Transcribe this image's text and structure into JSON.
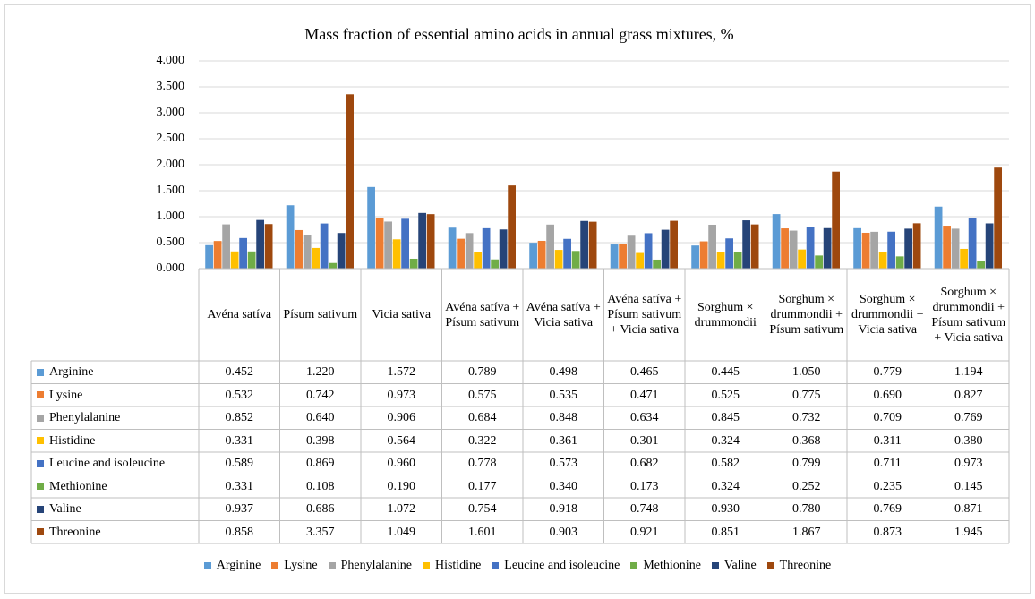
{
  "chart_data": {
    "type": "bar",
    "title": "Mass fraction of essential amino acids in annual grass mixtures, %",
    "categories": [
      "Avéna satíva",
      "Písum sativum",
      "Vicia sativa",
      "Avéna satíva + Písum sativum",
      "Avéna satíva + Vicia sativa",
      "Avéna satíva + Písum sativum + Vicia sativa",
      "Sorghum × drummondii",
      "Sorghum × drummondii + Písum sativum",
      "Sorghum × drummondii + Vicia sativa",
      "Sorghum × drummondii + Písum sativum + Vicia sativa"
    ],
    "ylim": [
      0,
      4
    ],
    "yticks": [
      {
        "value": 0,
        "label": "0.000"
      },
      {
        "value": 0.5,
        "label": "0.500"
      },
      {
        "value": 1,
        "label": "1.000"
      },
      {
        "value": 1.5,
        "label": "1.500"
      },
      {
        "value": 2,
        "label": "2.000"
      },
      {
        "value": 2.5,
        "label": "2.500"
      },
      {
        "value": 3,
        "label": "3.000"
      },
      {
        "value": 3.5,
        "label": "3.500"
      },
      {
        "value": 4,
        "label": "4.000"
      }
    ],
    "grid": true,
    "series": [
      {
        "name": "Arginine",
        "color": "#5b9bd5",
        "values": [
          0.452,
          1.22,
          1.572,
          0.789,
          0.498,
          0.465,
          0.445,
          1.05,
          0.779,
          1.194
        ],
        "value_labels": [
          "0.452",
          "1.220",
          "1.572",
          "0.789",
          "0.498",
          "0.465",
          "0.445",
          "1.050",
          "0.779",
          "1.194"
        ]
      },
      {
        "name": "Lysine",
        "color": "#ed7d31",
        "values": [
          0.532,
          0.742,
          0.973,
          0.575,
          0.535,
          0.471,
          0.525,
          0.775,
          0.69,
          0.827
        ],
        "value_labels": [
          "0.532",
          "0.742",
          "0.973",
          "0.575",
          "0.535",
          "0.471",
          "0.525",
          "0.775",
          "0.690",
          "0.827"
        ]
      },
      {
        "name": "Phenylalanine",
        "color": "#a5a5a5",
        "values": [
          0.852,
          0.64,
          0.906,
          0.684,
          0.848,
          0.634,
          0.845,
          0.732,
          0.709,
          0.769
        ],
        "value_labels": [
          "0.852",
          "0.640",
          "0.906",
          "0.684",
          "0.848",
          "0.634",
          "0.845",
          "0.732",
          "0.709",
          "0.769"
        ]
      },
      {
        "name": "Histidine",
        "color": "#ffc000",
        "values": [
          0.331,
          0.398,
          0.564,
          0.322,
          0.361,
          0.301,
          0.324,
          0.368,
          0.311,
          0.38
        ],
        "value_labels": [
          "0.331",
          "0.398",
          "0.564",
          "0.322",
          "0.361",
          "0.301",
          "0.324",
          "0.368",
          "0.311",
          "0.380"
        ]
      },
      {
        "name": "Leucine and isoleucine",
        "color": "#4472c4",
        "values": [
          0.589,
          0.869,
          0.96,
          0.778,
          0.573,
          0.682,
          0.582,
          0.799,
          0.711,
          0.973
        ],
        "value_labels": [
          "0.589",
          "0.869",
          "0.960",
          "0.778",
          "0.573",
          "0.682",
          "0.582",
          "0.799",
          "0.711",
          "0.973"
        ]
      },
      {
        "name": "Methionine",
        "color": "#70ad47",
        "values": [
          0.331,
          0.108,
          0.19,
          0.177,
          0.34,
          0.173,
          0.324,
          0.252,
          0.235,
          0.145
        ],
        "value_labels": [
          "0.331",
          "0.108",
          "0.190",
          "0.177",
          "0.340",
          "0.173",
          "0.324",
          "0.252",
          "0.235",
          "0.145"
        ]
      },
      {
        "name": "Valine",
        "color": "#264478",
        "values": [
          0.937,
          0.686,
          1.072,
          0.754,
          0.918,
          0.748,
          0.93,
          0.78,
          0.769,
          0.871
        ],
        "value_labels": [
          "0.937",
          "0.686",
          "1.072",
          "0.754",
          "0.918",
          "0.748",
          "0.930",
          "0.780",
          "0.769",
          "0.871"
        ]
      },
      {
        "name": "Threonine",
        "color": "#9e480e",
        "values": [
          0.858,
          3.357,
          1.049,
          1.601,
          0.903,
          0.921,
          0.851,
          1.867,
          0.873,
          1.945
        ],
        "value_labels": [
          "0.858",
          "3.357",
          "1.049",
          "1.601",
          "0.903",
          "0.921",
          "0.851",
          "1.867",
          "0.873",
          "1.945"
        ]
      }
    ]
  }
}
